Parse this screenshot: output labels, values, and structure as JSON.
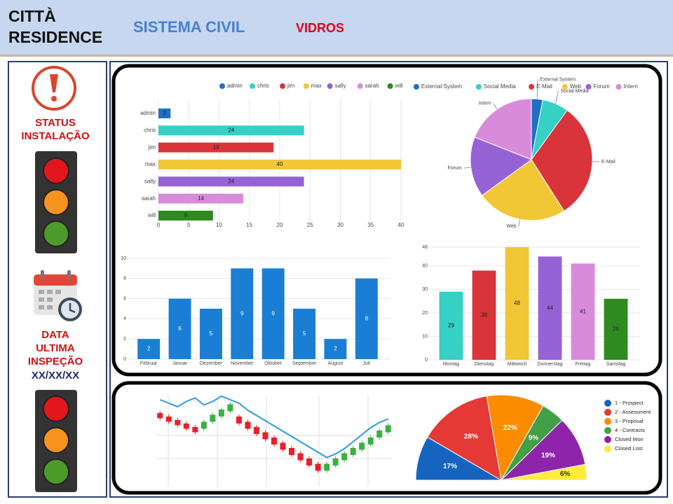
{
  "header": {
    "title": [
      "CITTÀ",
      "RESIDENCE"
    ],
    "system": "SISTEMA CIVIL",
    "module": "VIDROS"
  },
  "sidebar": {
    "status_label": [
      "STATUS",
      "INSTALAÇÃO"
    ],
    "inspection_label": [
      "DATA",
      "ULTIMA",
      "INSPEÇÃO"
    ],
    "inspection_date": "XX/XX/XX"
  },
  "chart_data": [
    {
      "type": "hbar",
      "categories": [
        "admin",
        "chris",
        "jim",
        "max",
        "sally",
        "sarah",
        "will"
      ],
      "values": [
        2,
        24,
        19,
        40,
        24,
        14,
        9
      ],
      "colors": [
        "#1f6fc5",
        "#34d1c4",
        "#d9343a",
        "#f2c736",
        "#9563d6",
        "#d98bdb",
        "#2e8b1e"
      ],
      "xlim": [
        0,
        40
      ],
      "xticks": [
        0,
        5,
        10,
        15,
        20,
        25,
        30,
        35,
        40
      ],
      "grid": true,
      "legend": "top"
    },
    {
      "type": "pie",
      "categories": [
        "External System",
        "Social Media",
        "E-Mail",
        "Web",
        "Forum",
        "Intern"
      ],
      "values": [
        3,
        7,
        31,
        24,
        16,
        19
      ],
      "colors": [
        "#1f6fc5",
        "#34d1c4",
        "#d9343a",
        "#f2c736",
        "#9563d6",
        "#d98bdb"
      ],
      "legend": "top"
    },
    {
      "type": "bar",
      "categories": [
        "Februar",
        "Januar",
        "Dezember",
        "November",
        "Oktober",
        "September",
        "August",
        "Juli"
      ],
      "values": [
        2,
        6,
        5,
        9,
        9,
        5,
        2,
        8
      ],
      "color": "#1a7fd4",
      "ylim": [
        0,
        10
      ],
      "yticks": [
        0,
        2,
        4,
        6,
        8,
        10
      ],
      "grid": true
    },
    {
      "type": "bar",
      "categories": [
        "Montag",
        "Dienstag",
        "Mittwoch",
        "Donnerstag",
        "Freitag",
        "Samstag"
      ],
      "values": [
        29,
        38,
        48,
        44,
        41,
        26
      ],
      "colors": [
        "#34d1c4",
        "#d9343a",
        "#f2c736",
        "#9563d6",
        "#d98bdb",
        "#2e8b1e"
      ],
      "ylim": [
        0,
        48
      ],
      "yticks": [
        0,
        10,
        20,
        30,
        40,
        48
      ],
      "grid": true
    },
    {
      "type": "candlestick",
      "open": [
        80,
        76,
        72,
        68,
        64,
        62,
        70,
        76,
        82,
        76,
        70,
        64,
        58,
        52,
        46,
        40,
        34,
        28,
        22,
        14,
        20,
        26,
        32,
        38,
        44,
        52,
        58
      ],
      "close": [
        74,
        70,
        66,
        62,
        58,
        70,
        78,
        84,
        90,
        68,
        62,
        56,
        50,
        44,
        38,
        32,
        26,
        20,
        14,
        22,
        28,
        34,
        40,
        46,
        52,
        60,
        66
      ],
      "line": [
        92,
        88,
        84,
        90,
        94,
        86,
        90,
        96,
        92,
        88,
        80,
        74,
        68,
        62,
        56,
        50,
        44,
        38,
        32,
        26,
        30,
        36,
        44,
        52,
        60,
        66,
        70
      ],
      "up_color": "#3cb043",
      "down_color": "#e8202a",
      "line_color": "#2b9be0",
      "ylim": [
        0,
        100
      ]
    },
    {
      "type": "semi-pie",
      "categories": [
        "1 - Prospect",
        "2 - Assessment",
        "3 - Proposal",
        "4 - Contracts",
        "Closed Won",
        "Closed Lost"
      ],
      "values": [
        17,
        28,
        22,
        9,
        19,
        6
      ],
      "value_labels": [
        "17%",
        "28%",
        "22%",
        "9%",
        "19%",
        "6%"
      ],
      "colors": [
        "#1565c0",
        "#e53935",
        "#fb8c00",
        "#43a047",
        "#8e24aa",
        "#ffeb3b"
      ],
      "legend": "right"
    }
  ]
}
